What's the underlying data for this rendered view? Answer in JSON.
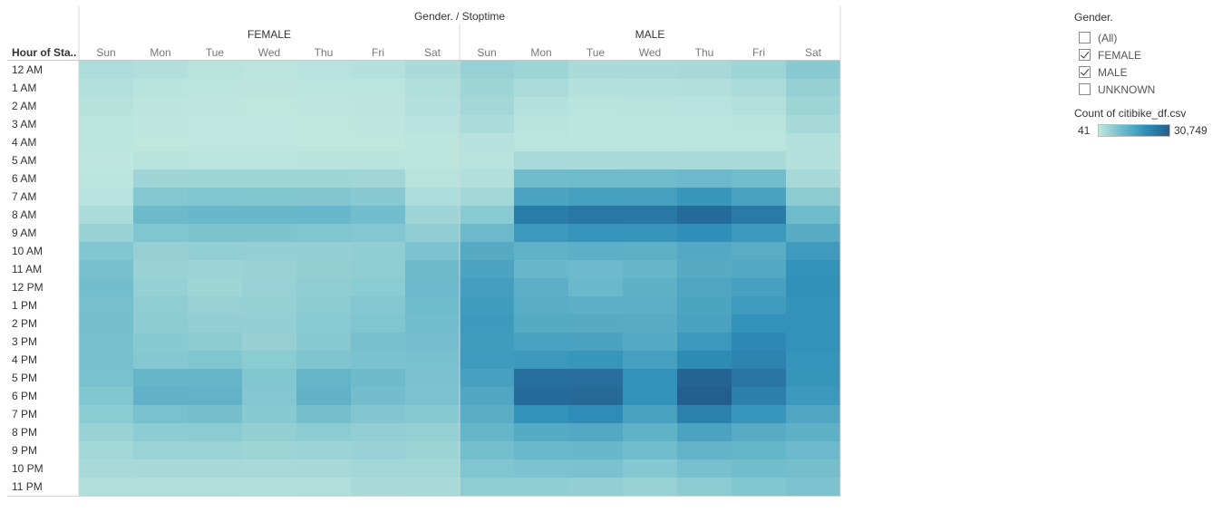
{
  "chart_data": {
    "type": "heatmap",
    "title": "Gender. / Stoptime",
    "row_header": "Hour of Sta..",
    "groups": [
      "FEMALE",
      "MALE"
    ],
    "days": [
      "Sun",
      "Mon",
      "Tue",
      "Wed",
      "Thu",
      "Fri",
      "Sat"
    ],
    "hours": [
      "12 AM",
      "1 AM",
      "2 AM",
      "3 AM",
      "4 AM",
      "5 AM",
      "6 AM",
      "7 AM",
      "8 AM",
      "9 AM",
      "10 AM",
      "11 AM",
      "12 PM",
      "1 PM",
      "2 PM",
      "3 PM",
      "4 PM",
      "5 PM",
      "6 PM",
      "7 PM",
      "8 PM",
      "9 PM",
      "10 PM",
      "11 PM"
    ],
    "color_min": 41,
    "color_max": 30749,
    "values": {
      "FEMALE": [
        [
          2500,
          2000,
          1200,
          1000,
          1300,
          1600,
          3000
        ],
        [
          1800,
          1100,
          700,
          600,
          800,
          1000,
          2300
        ],
        [
          1400,
          600,
          400,
          350,
          450,
          600,
          1800
        ],
        [
          1000,
          400,
          250,
          250,
          300,
          400,
          1300
        ],
        [
          700,
          350,
          250,
          250,
          300,
          350,
          900
        ],
        [
          500,
          1200,
          1000,
          1000,
          1100,
          1100,
          700
        ],
        [
          700,
          4200,
          4400,
          4400,
          4300,
          4000,
          1200
        ],
        [
          1300,
          7200,
          7800,
          7700,
          7500,
          6800,
          2600
        ],
        [
          2800,
          10200,
          10800,
          10700,
          10900,
          9400,
          4200
        ],
        [
          5000,
          7800,
          8100,
          8100,
          7800,
          7400,
          6100
        ],
        [
          7600,
          5300,
          5700,
          5600,
          5600,
          5900,
          8200
        ],
        [
          8900,
          5000,
          4700,
          5000,
          5500,
          6000,
          10200
        ],
        [
          9400,
          5400,
          4300,
          5100,
          6100,
          6600,
          10400
        ],
        [
          9100,
          6000,
          5100,
          5400,
          6400,
          7300,
          9900
        ],
        [
          9200,
          6200,
          5800,
          5600,
          6700,
          7800,
          9400
        ],
        [
          9000,
          6800,
          6500,
          5300,
          7100,
          8900,
          9300
        ],
        [
          8900,
          7200,
          7800,
          6600,
          8000,
          8600,
          8900
        ],
        [
          8700,
          11200,
          11300,
          7600,
          11400,
          10200,
          8500
        ],
        [
          7700,
          12100,
          11900,
          7300,
          12200,
          9500,
          8300
        ],
        [
          6600,
          8800,
          9200,
          6900,
          9200,
          7500,
          6800
        ],
        [
          5000,
          6300,
          6400,
          5500,
          6500,
          5800,
          5400
        ],
        [
          3800,
          4800,
          4800,
          4500,
          4700,
          4900,
          4600
        ],
        [
          3100,
          3400,
          3400,
          3100,
          3400,
          3900,
          3800
        ],
        [
          2200,
          2300,
          2200,
          2100,
          2300,
          2900,
          3100
        ]
      ],
      "MALE": [
        [
          5200,
          4300,
          2900,
          3000,
          3300,
          4400,
          6800
        ],
        [
          4300,
          2700,
          1700,
          1800,
          2100,
          2800,
          5300
        ],
        [
          3600,
          1600,
          1100,
          1200,
          1300,
          1800,
          4400
        ],
        [
          2700,
          1100,
          800,
          800,
          900,
          1100,
          3300
        ],
        [
          1500,
          1000,
          800,
          800,
          900,
          1000,
          1900
        ],
        [
          1200,
          3100,
          2900,
          2900,
          2900,
          2900,
          1600
        ],
        [
          2000,
          9800,
          10000,
          9800,
          10400,
          9600,
          3400
        ],
        [
          3700,
          15700,
          16800,
          16700,
          18600,
          15900,
          6500
        ],
        [
          6700,
          24200,
          25500,
          25200,
          27800,
          24900,
          10000
        ],
        [
          10500,
          18300,
          19400,
          19400,
          20200,
          18400,
          13800
        ],
        [
          14000,
          12300,
          12900,
          12600,
          14400,
          13500,
          17800
        ],
        [
          15700,
          11000,
          10300,
          11200,
          14000,
          14500,
          19800
        ],
        [
          16900,
          12900,
          10600,
          12500,
          15000,
          16400,
          20100
        ],
        [
          17600,
          13700,
          13000,
          13000,
          15500,
          17800,
          19700
        ],
        [
          18000,
          14200,
          14000,
          13800,
          16000,
          19800,
          19700
        ],
        [
          17600,
          16300,
          16000,
          14300,
          18300,
          21800,
          19700
        ],
        [
          17800,
          18200,
          18900,
          16700,
          21400,
          22900,
          19400
        ],
        [
          16500,
          27200,
          27400,
          19900,
          29800,
          25700,
          19200
        ],
        [
          14800,
          27900,
          28200,
          19800,
          30749,
          23900,
          18400
        ],
        [
          13300,
          19900,
          21100,
          16000,
          23300,
          19000,
          15000
        ],
        [
          11300,
          14200,
          14400,
          12300,
          15700,
          13800,
          12700
        ],
        [
          9200,
          10600,
          10700,
          9700,
          11600,
          11300,
          10400
        ],
        [
          7900,
          8200,
          8500,
          7200,
          8900,
          9600,
          9200
        ],
        [
          6100,
          6000,
          5800,
          5200,
          6500,
          7700,
          8300
        ]
      ]
    }
  },
  "legend": {
    "filter_title": "Gender.",
    "filter_items": [
      {
        "label": "(All)",
        "checked": false
      },
      {
        "label": "FEMALE",
        "checked": true
      },
      {
        "label": "MALE",
        "checked": true
      },
      {
        "label": "UNKNOWN",
        "checked": false
      }
    ],
    "color_title": "Count of citibike_df.csv",
    "color_min_label": "41",
    "color_max_label": "30,749",
    "ramp_colors": [
      "#c2e8df",
      "#6cbacb",
      "#2f8fb8",
      "#235e8e"
    ]
  }
}
